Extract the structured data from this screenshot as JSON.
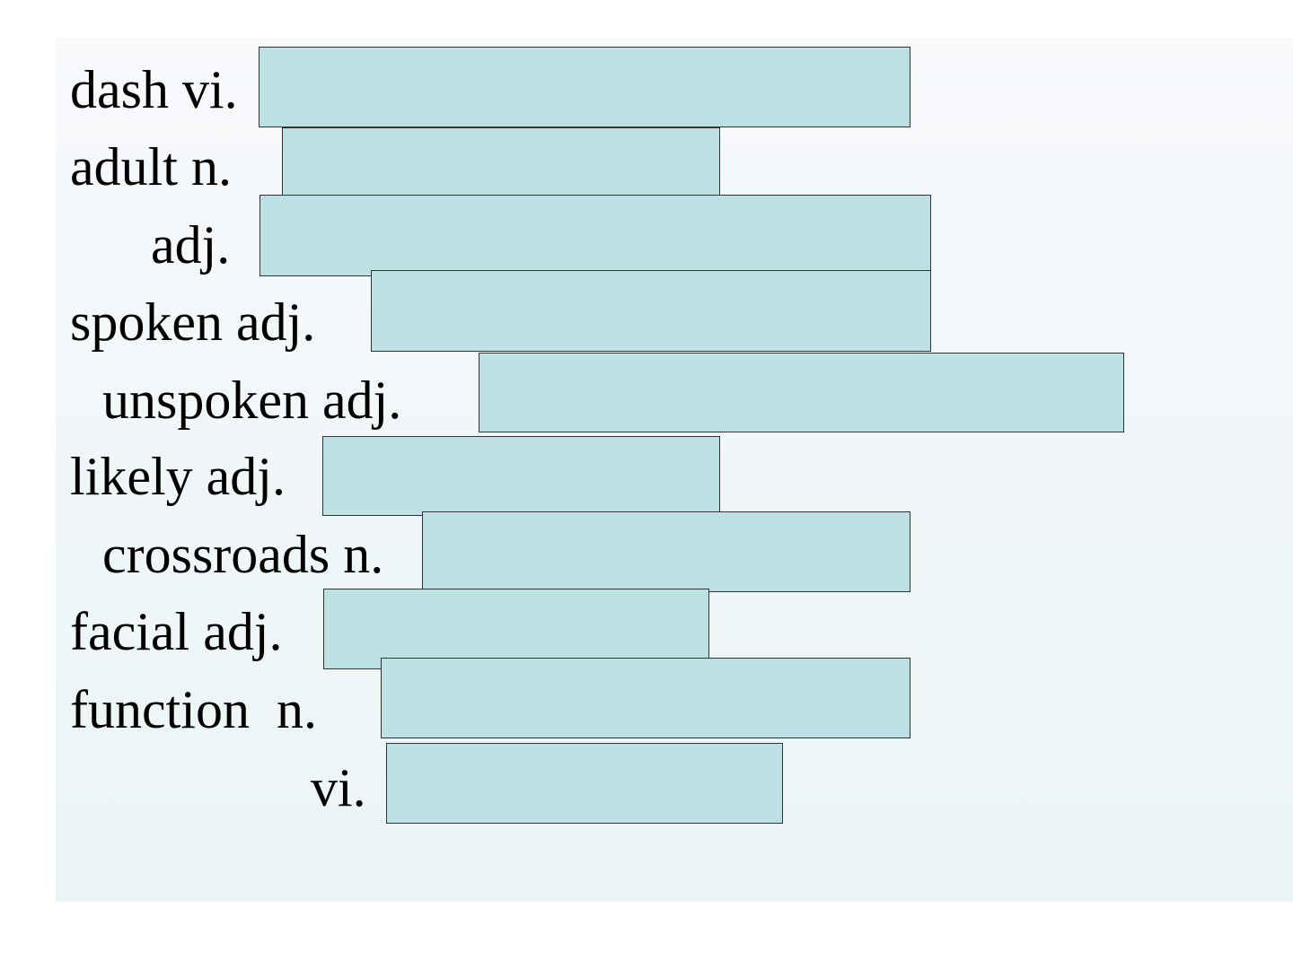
{
  "slide": {
    "rows": [
      {
        "label": "dash vi."
      },
      {
        "label": "adult n."
      },
      {
        "label": "adj."
      },
      {
        "label": "spoken adj."
      },
      {
        "label": "unspoken adj."
      },
      {
        "label": "likely adj."
      },
      {
        "label": "crossroads n."
      },
      {
        "label": "facial adj."
      },
      {
        "label": "function  n."
      },
      {
        "label": "vi."
      }
    ]
  }
}
